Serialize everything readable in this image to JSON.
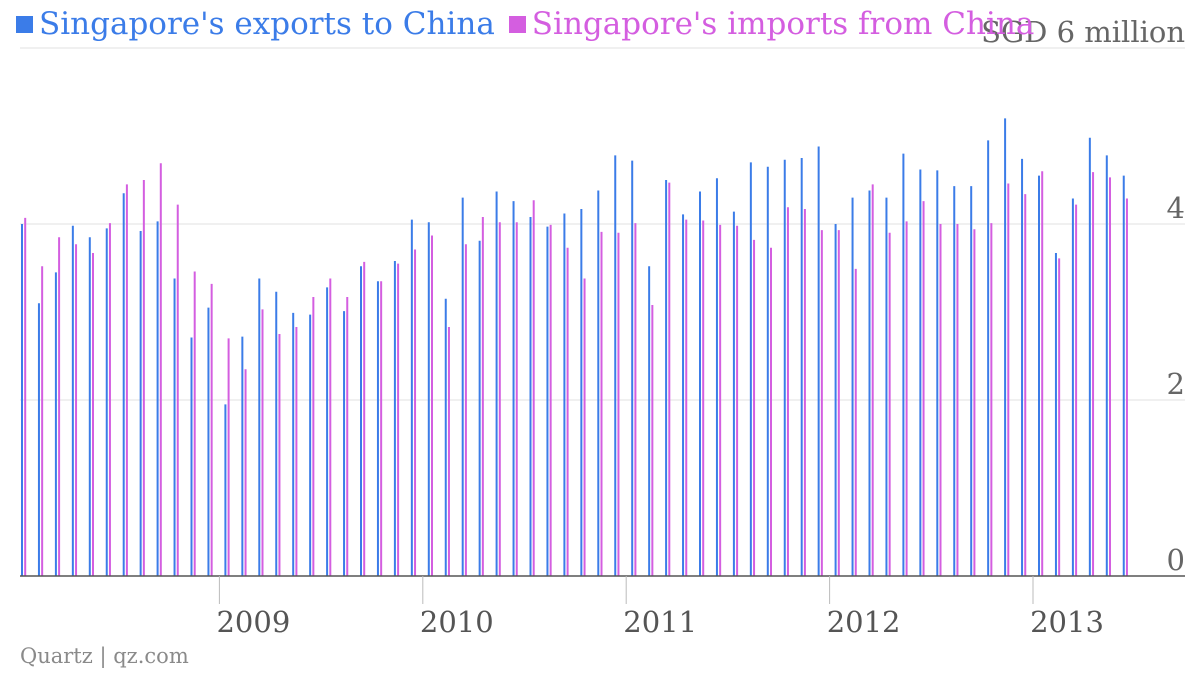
{
  "legend": [
    {
      "name": "Singapore's exports to China",
      "color": "#3b7ce8"
    },
    {
      "name": "Singapore's imports from China",
      "color": "#d45ee0"
    }
  ],
  "footer": {
    "source": "Quartz | qz.com"
  },
  "chart_data": {
    "type": "bar",
    "title": "",
    "ylabel": "SGD 6 million",
    "ylim": [
      0,
      6
    ],
    "yticks": [
      "0",
      "2",
      "4",
      "SGD 6 million"
    ],
    "ytick_values": [
      0,
      2,
      4,
      6
    ],
    "xticks": [
      "2009",
      "2010",
      "2011",
      "2012",
      "2013"
    ],
    "xtick_positions": [
      "2009-01",
      "2010-01",
      "2011-01",
      "2012-01",
      "2013-01"
    ],
    "grid": true,
    "legend_position": "top-left",
    "months": [
      "2008-01",
      "2008-02",
      "2008-03",
      "2008-04",
      "2008-05",
      "2008-06",
      "2008-07",
      "2008-08",
      "2008-09",
      "2008-10",
      "2008-11",
      "2008-12",
      "2009-01",
      "2009-02",
      "2009-03",
      "2009-04",
      "2009-05",
      "2009-06",
      "2009-07",
      "2009-08",
      "2009-09",
      "2009-10",
      "2009-11",
      "2009-12",
      "2010-01",
      "2010-02",
      "2010-03",
      "2010-04",
      "2010-05",
      "2010-06",
      "2010-07",
      "2010-08",
      "2010-09",
      "2010-10",
      "2010-11",
      "2010-12",
      "2011-01",
      "2011-02",
      "2011-03",
      "2011-04",
      "2011-05",
      "2011-06",
      "2011-07",
      "2011-08",
      "2011-09",
      "2011-10",
      "2011-11",
      "2011-12",
      "2012-01",
      "2012-02",
      "2012-03",
      "2012-04",
      "2012-05",
      "2012-06",
      "2012-07",
      "2012-08",
      "2012-09",
      "2012-10",
      "2012-11",
      "2012-12",
      "2013-01",
      "2013-02",
      "2013-03",
      "2013-04",
      "2013-05",
      "2013-06"
    ],
    "series": [
      {
        "name": "Singapore's exports to China",
        "color": "#3b7ce8",
        "values": [
          4.0,
          3.1,
          3.45,
          3.98,
          3.85,
          3.95,
          4.35,
          3.92,
          4.03,
          3.38,
          2.71,
          3.05,
          1.95,
          2.72,
          3.38,
          3.23,
          2.99,
          2.97,
          3.28,
          3.01,
          3.52,
          3.35,
          3.58,
          4.05,
          4.02,
          3.15,
          4.3,
          3.81,
          4.37,
          4.26,
          4.08,
          3.97,
          4.12,
          4.17,
          4.38,
          4.78,
          4.72,
          3.52,
          4.5,
          4.11,
          4.37,
          4.52,
          4.14,
          4.7,
          4.65,
          4.73,
          4.75,
          4.88,
          4.0,
          4.3,
          4.38,
          4.3,
          4.8,
          4.62,
          4.61,
          4.43,
          4.43,
          4.95,
          5.2,
          4.74,
          4.55,
          3.67,
          4.29,
          4.98,
          4.78,
          4.55
        ]
      },
      {
        "name": "Singapore's imports from China",
        "color": "#d45ee0",
        "values": [
          4.07,
          3.52,
          3.85,
          3.77,
          3.67,
          4.01,
          4.45,
          4.5,
          4.69,
          4.22,
          3.46,
          3.32,
          2.7,
          2.35,
          3.03,
          2.75,
          2.83,
          3.17,
          3.38,
          3.17,
          3.57,
          3.35,
          3.55,
          3.71,
          3.87,
          2.83,
          3.77,
          4.08,
          4.02,
          4.02,
          4.27,
          3.99,
          3.73,
          3.38,
          3.91,
          3.9,
          4.01,
          3.08,
          4.47,
          4.05,
          4.04,
          3.99,
          3.98,
          3.82,
          3.73,
          4.19,
          4.17,
          3.93,
          3.93,
          3.49,
          4.45,
          3.9,
          4.03,
          4.26,
          4.0,
          4.0,
          3.94,
          4.01,
          4.46,
          4.34,
          4.6,
          3.61,
          4.22,
          4.59,
          4.53,
          4.29
        ]
      }
    ]
  }
}
